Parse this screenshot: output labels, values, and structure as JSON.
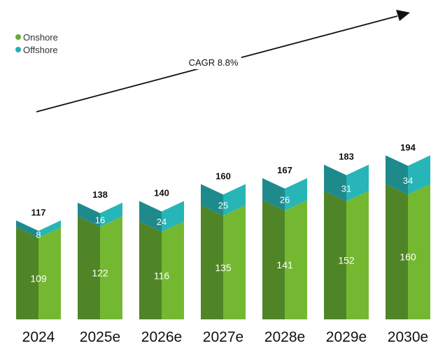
{
  "chart_data": {
    "type": "bar",
    "stacked": true,
    "style": "3d-prism",
    "categories": [
      "2024",
      "2025e",
      "2026e",
      "2027e",
      "2028e",
      "2029e",
      "2030e"
    ],
    "series": [
      {
        "name": "Onshore",
        "values": [
          109,
          122,
          116,
          135,
          141,
          152,
          160
        ]
      },
      {
        "name": "Offshore",
        "values": [
          8,
          16,
          24,
          25,
          26,
          31,
          34
        ]
      }
    ],
    "totals": [
      117,
      138,
      140,
      160,
      167,
      183,
      194
    ],
    "annotation": "CAGR 8.8%",
    "ylim": [
      0,
      200
    ],
    "legend_position": "top-left",
    "grid": false
  },
  "legend": [
    {
      "label": "Onshore",
      "color": "#6aaa2e"
    },
    {
      "label": "Offshore",
      "color": "#22b0b2"
    }
  ],
  "colors": {
    "onshore_left": "#4f8526",
    "onshore_right": "#74b832",
    "offshore_left": "#1f8a8c",
    "offshore_right": "#27b5b7",
    "label_inner": "#ffffff",
    "label_total": "#111111",
    "category_text": "#111111",
    "arrow": "#111111"
  }
}
